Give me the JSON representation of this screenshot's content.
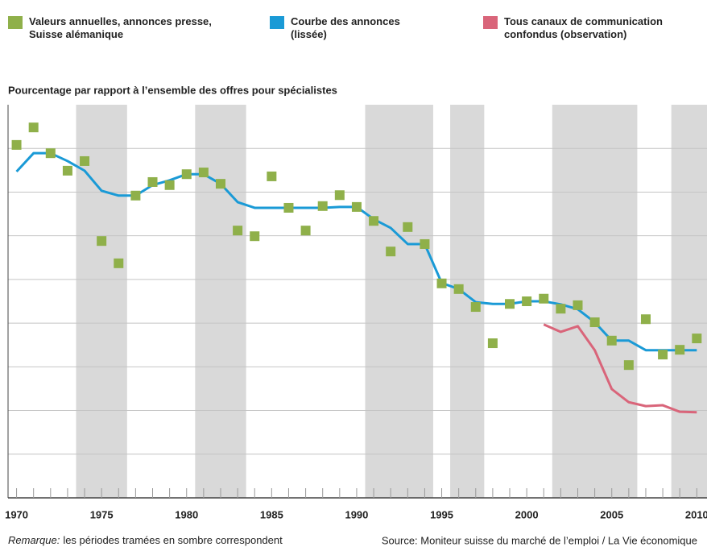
{
  "chart_data": {
    "type": "scatter-line",
    "subtitle": "Pourcentage par rapport à l’ensemble des offres pour spécialistes",
    "x": [
      1970,
      1971,
      1972,
      1973,
      1974,
      1975,
      1976,
      1977,
      1978,
      1979,
      1980,
      1981,
      1982,
      1983,
      1984,
      1985,
      1986,
      1987,
      1988,
      1989,
      1990,
      1991,
      1992,
      1993,
      1994,
      1995,
      1996,
      1997,
      1998,
      1999,
      2000,
      2001,
      2002,
      2003,
      2004,
      2005,
      2006,
      2007,
      2008,
      2009,
      2010
    ],
    "series": [
      {
        "name": "Valeurs annuelles, annonces presse, Suisse alémanique",
        "color": "#8fb04a",
        "kind": "scatter",
        "values": [
          8.08,
          8.48,
          7.89,
          7.49,
          7.71,
          5.88,
          5.37,
          6.92,
          7.23,
          7.16,
          7.41,
          7.45,
          7.19,
          6.12,
          5.99,
          7.36,
          6.64,
          6.12,
          6.68,
          6.93,
          6.66,
          6.34,
          5.64,
          6.2,
          5.81,
          4.91,
          4.78,
          4.37,
          3.54,
          4.44,
          4.5,
          4.56,
          4.33,
          4.41,
          4.02,
          3.6,
          3.04,
          4.09,
          3.28,
          3.39,
          3.65
        ]
      },
      {
        "name": "Courbe des annonces (lissée)",
        "color": "#1a9ad6",
        "kind": "line",
        "values": [
          7.47,
          7.89,
          7.89,
          7.71,
          7.49,
          7.03,
          6.92,
          6.92,
          7.16,
          7.27,
          7.41,
          7.41,
          7.19,
          6.77,
          6.64,
          6.64,
          6.64,
          6.64,
          6.64,
          6.66,
          6.66,
          6.38,
          6.18,
          5.81,
          5.81,
          4.92,
          4.78,
          4.48,
          4.44,
          4.44,
          4.5,
          4.5,
          4.43,
          4.32,
          4.02,
          3.6,
          3.6,
          3.38,
          3.38,
          3.38,
          3.38
        ]
      },
      {
        "name": "Tous canaux de communication confondus (observation)",
        "color": "#d9657a",
        "kind": "line",
        "values": [
          null,
          null,
          null,
          null,
          null,
          null,
          null,
          null,
          null,
          null,
          null,
          null,
          null,
          null,
          null,
          null,
          null,
          null,
          null,
          null,
          null,
          null,
          null,
          null,
          null,
          null,
          null,
          null,
          null,
          null,
          null,
          3.97,
          3.8,
          3.93,
          3.38,
          2.49,
          2.19,
          2.1,
          2.12,
          1.97,
          1.96
        ]
      }
    ],
    "shaded_periods": [
      [
        1973.5,
        1976.5
      ],
      [
        1980.5,
        1983.5
      ],
      [
        1990.5,
        1994.5
      ],
      [
        1995.5,
        1997.5
      ],
      [
        2001.5,
        2006.5
      ],
      [
        2008.5,
        2010.6
      ]
    ],
    "xlim": [
      1969.5,
      2010.6
    ],
    "xticks": [
      1970,
      1975,
      1980,
      1985,
      1990,
      1995,
      2000,
      2005,
      2010
    ],
    "ylim": [
      0,
      9
    ],
    "yticks": [
      1,
      2,
      3,
      4,
      5,
      6,
      7,
      8
    ],
    "grid": true,
    "note_label": "Remarque:",
    "note": "les périodes tramées en sombre correspondent",
    "source": "Source: Moniteur suisse du marché de l’emploi / La Vie économique"
  }
}
